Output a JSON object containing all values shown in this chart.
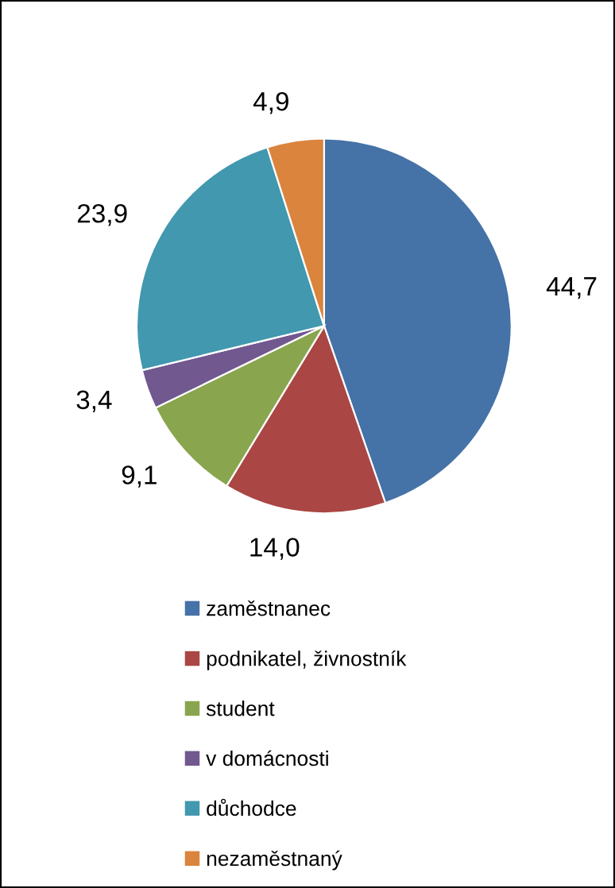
{
  "chart_data": {
    "type": "pie",
    "categories": [
      "zaměstnanec",
      "podnikatel, živnostník",
      "student",
      "v domácnosti",
      "důchodce",
      "nezaměstnaný"
    ],
    "values": [
      44.7,
      14.0,
      9.1,
      3.4,
      23.9,
      4.9
    ],
    "value_labels": [
      "44,7",
      "14,0",
      "9,1",
      "3,4",
      "23,9",
      "4,9"
    ],
    "colors": [
      "#4572a7",
      "#aa4643",
      "#89a54e",
      "#71588f",
      "#4198af",
      "#db843d"
    ],
    "legend": "bottom"
  }
}
